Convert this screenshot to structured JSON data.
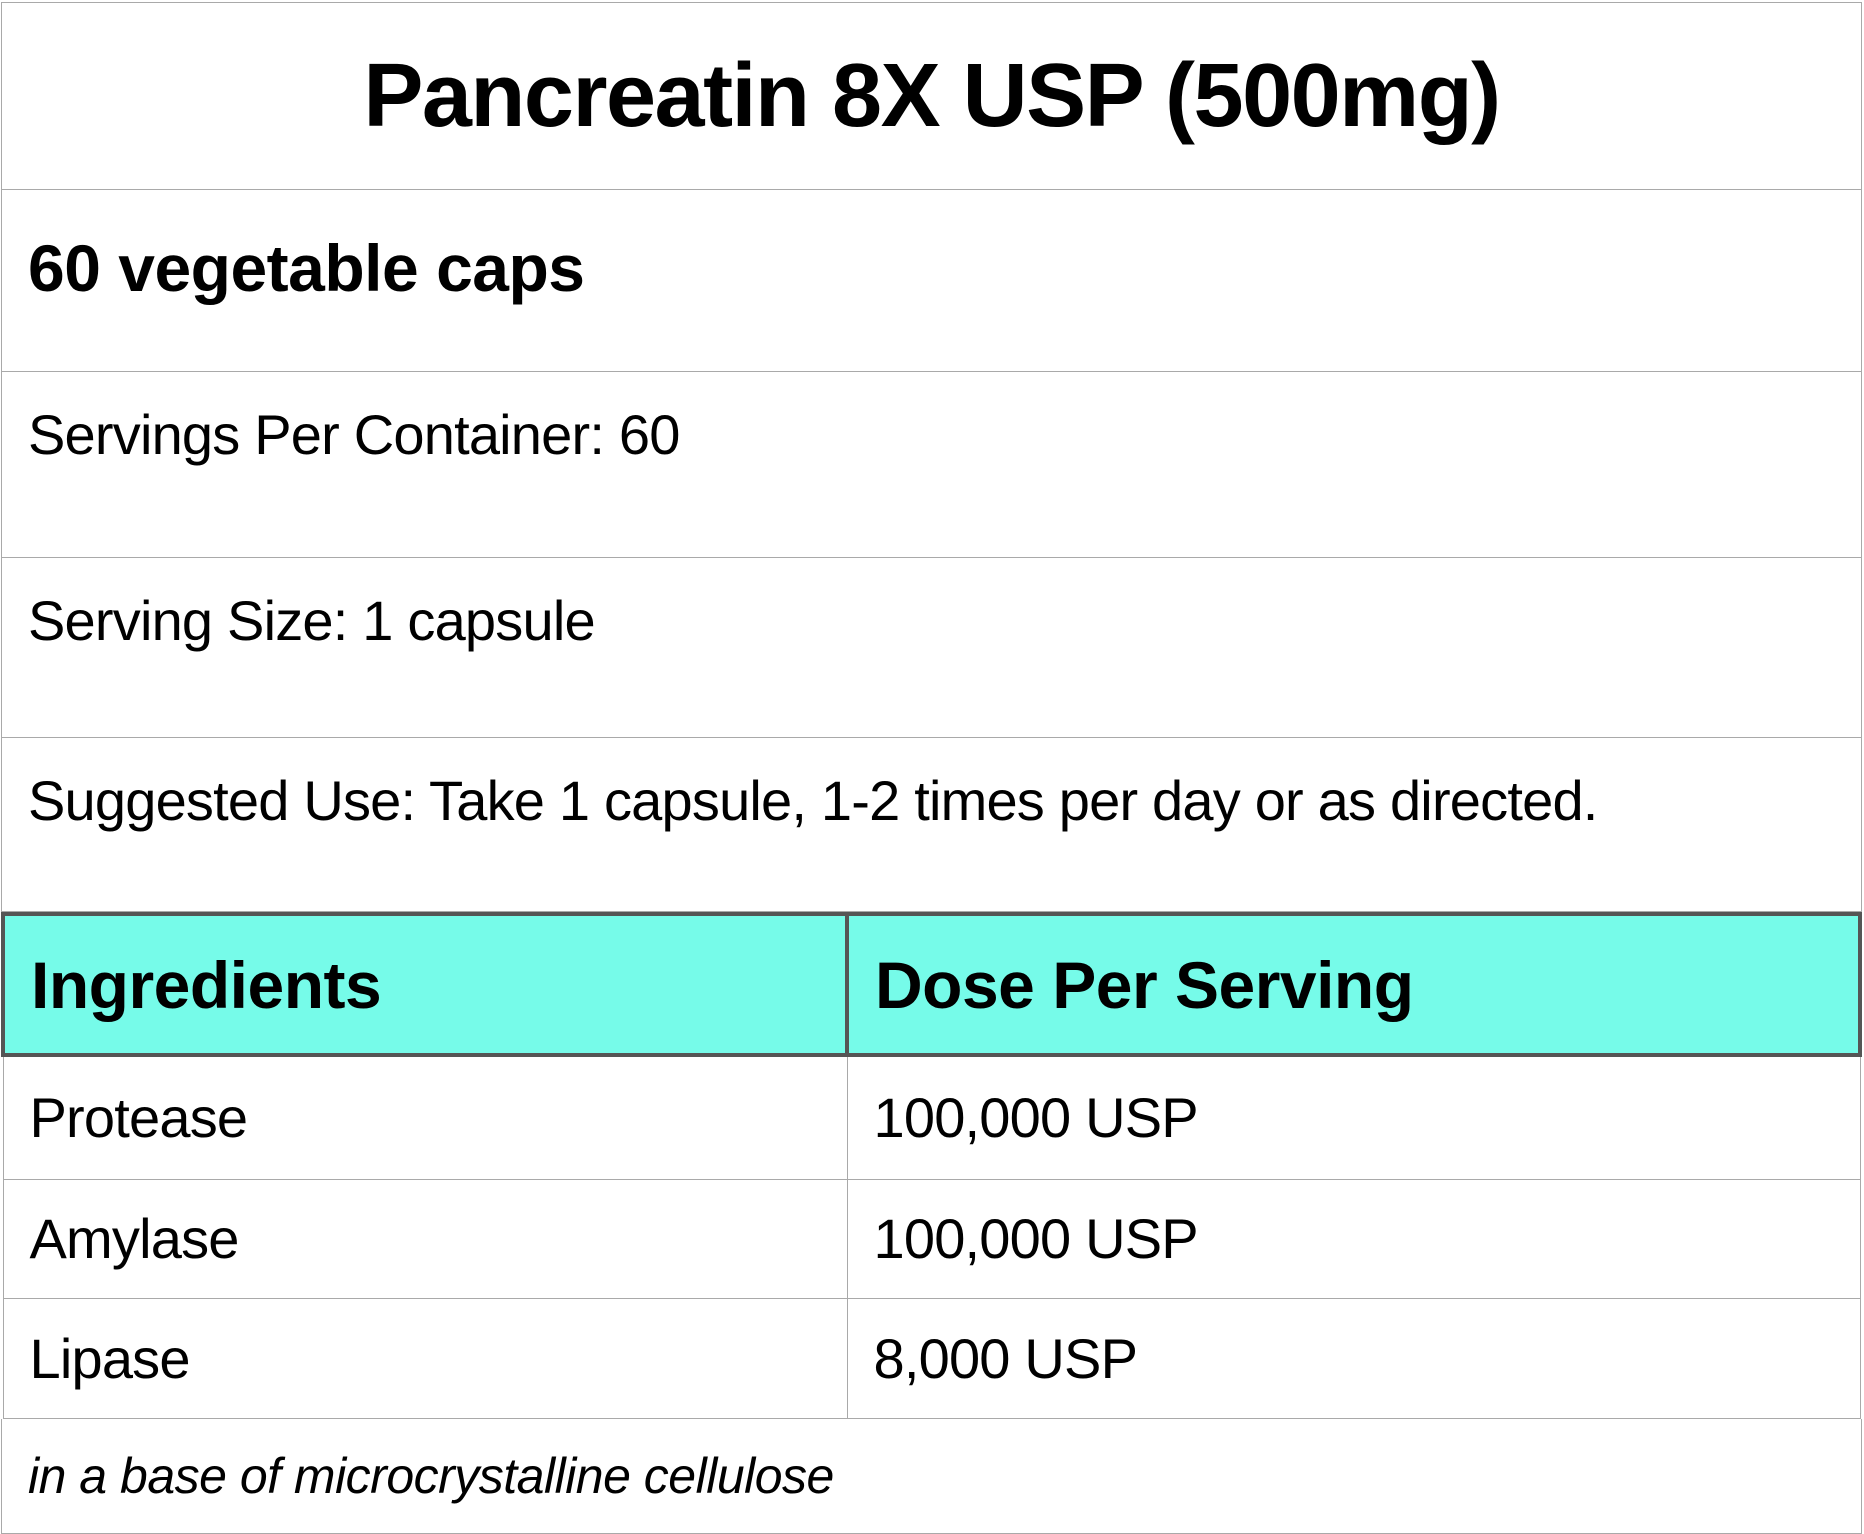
{
  "title": "Pancreatin 8X USP (500mg)",
  "count": "60 vegetable caps",
  "servings_per_container": "Servings Per Container: 60",
  "serving_size": "Serving Size: 1 capsule",
  "suggested_use": "Suggested Use: Take 1 capsule, 1-2 times per day or as directed.",
  "table": {
    "headers": [
      "Ingredients",
      "Dose Per Serving"
    ],
    "rows": [
      [
        "Protease",
        "100,000 USP"
      ],
      [
        "Amylase",
        "100,000 USP"
      ],
      [
        "Lipase",
        "8,000 USP"
      ]
    ],
    "header_color": "#76fbe9"
  },
  "footer": "in a base of microcrystalline cellulose"
}
